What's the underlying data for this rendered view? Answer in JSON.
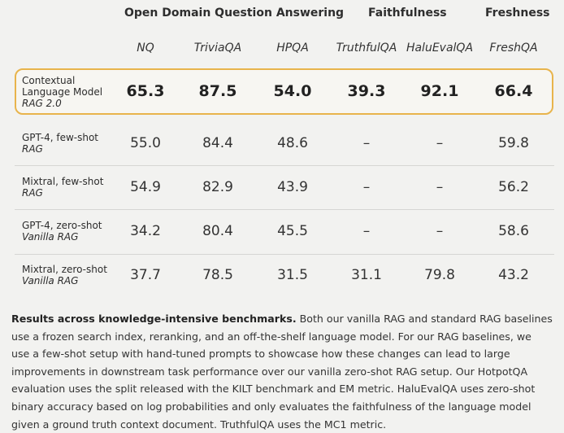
{
  "groups": [
    {
      "label": "Open Domain Question Answering"
    },
    {
      "label": "Faithfulness"
    },
    {
      "label": "Freshness"
    }
  ],
  "columns": [
    "NQ",
    "TriviaQA",
    "HPQA",
    "TruthfulQA",
    "HaluEvalQA",
    "FreshQA"
  ],
  "rows": [
    {
      "name": "Contextual\nLanguage Model",
      "sub": "RAG 2.0",
      "values": [
        "65.3",
        "87.5",
        "54.0",
        "39.3",
        "92.1",
        "66.4"
      ]
    },
    {
      "name": "GPT-4, few-shot",
      "sub": "RAG",
      "values": [
        "55.0",
        "84.4",
        "48.6",
        "–",
        "–",
        "59.8"
      ]
    },
    {
      "name": "Mixtral, few-shot",
      "sub": "RAG",
      "values": [
        "54.9",
        "82.9",
        "43.9",
        "–",
        "–",
        "56.2"
      ]
    },
    {
      "name": "GPT-4, zero-shot",
      "sub": "Vanilla RAG",
      "values": [
        "34.2",
        "80.4",
        "45.5",
        "–",
        "–",
        "58.6"
      ]
    },
    {
      "name": "Mixtral, zero-shot",
      "sub": "Vanilla RAG",
      "values": [
        "37.7",
        "78.5",
        "31.5",
        "31.1",
        "79.8",
        "43.2"
      ]
    }
  ],
  "caption": {
    "title": "Results across knowledge-intensive benchmarks.",
    "body": "Both our vanilla RAG and standard RAG baselines use a frozen search index, reranking, and an off-the-shelf language model. For our RAG baselines, we use a few-shot setup with hand-tuned prompts to showcase how these changes can lead to large improvements in downstream task performance over our vanilla zero-shot RAG setup. Our HotpotQA evaluation uses the split released with the KILT benchmark and EM metric. HaluEvalQA uses zero-shot binary accuracy based on log probabilities and only evaluates the faithfulness of the language model given a ground truth context document. TruthfulQA uses the MC1 metric."
  },
  "highlight_color": "#e8b44c"
}
